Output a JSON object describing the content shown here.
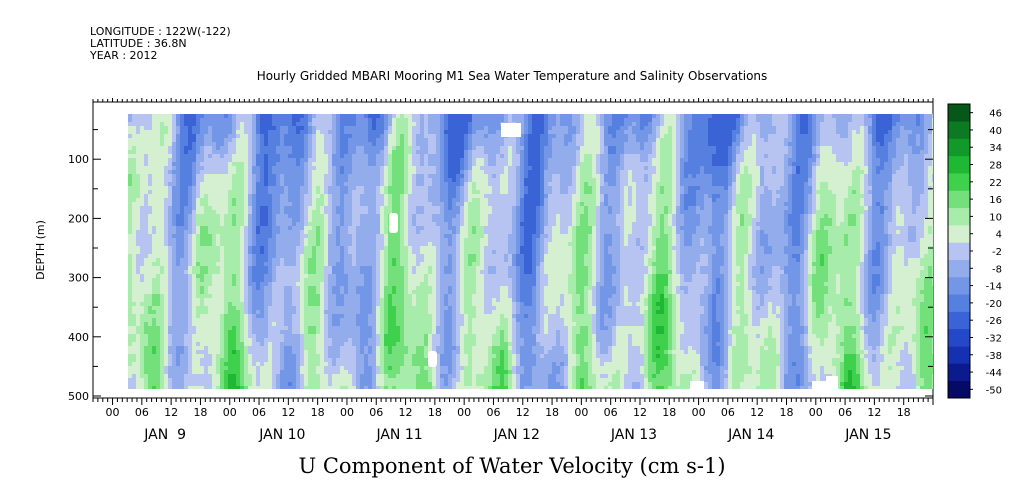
{
  "header": {
    "longitude": "LONGITUDE : 122W(-122)",
    "latitude": "LATITUDE : 36.8N",
    "year": "YEAR : 2012",
    "title": "Hourly Gridded MBARI Mooring M1 Sea Water Temperature and Salinity Observations"
  },
  "caption": "U Component of Water Velocity (cm s-1)",
  "chart_data": {
    "type": "heatmap",
    "title": "Hourly Gridded MBARI Mooring M1 Sea Water Temperature and Salinity Observations",
    "variable": "U Component of Water Velocity (cm s-1)",
    "xlabel": "",
    "ylabel": "DEPTH (m)",
    "x_range_hours": [
      "JAN 8 2012 20:00",
      "JAN 16 2012 00:00"
    ],
    "data_extent_hours": [
      "JAN 9 2012 06:00",
      "JAN 15 2012 23:00"
    ],
    "y_range": [
      500,
      0
    ],
    "y_data_extent": [
      490,
      15
    ],
    "y_ticks": [
      100,
      200,
      300,
      400,
      500
    ],
    "x_hour_ticks": [
      "00",
      "06",
      "12",
      "18",
      "00",
      "06",
      "12",
      "18",
      "00",
      "06",
      "12",
      "18",
      "00",
      "06",
      "12",
      "18",
      "00",
      "06",
      "12",
      "18",
      "00",
      "06",
      "12",
      "18",
      "00",
      "06",
      "12",
      "18"
    ],
    "x_day_labels": [
      "JAN  9",
      "JAN 10",
      "JAN 11",
      "JAN 12",
      "JAN 13",
      "JAN 14",
      "JAN 15"
    ],
    "colorbar": {
      "levels": [
        -50,
        -44,
        -38,
        -32,
        -26,
        -20,
        -14,
        -8,
        -2,
        4,
        10,
        16,
        22,
        28,
        34,
        40,
        46
      ],
      "labels": [
        "-50",
        "-44",
        "-38",
        "-32",
        "-26",
        "-20",
        "-14",
        "-8",
        "-2",
        "4",
        "10",
        "16",
        "22",
        "28",
        "34",
        "40",
        "46"
      ],
      "colors": [
        "#040a66",
        "#0b1a8c",
        "#1530b0",
        "#2448c8",
        "#3a64d6",
        "#5580e0",
        "#7396e6",
        "#93acec",
        "#b7c4f2",
        "#d4f0d0",
        "#a8ecac",
        "#74e07c",
        "#3fd04e",
        "#1eb834",
        "#119a2a",
        "#0b7a22",
        "#06581a"
      ]
    },
    "missing_regions": [
      "JAN 11 ~10:00 near 200-225 m",
      "JAN 11 ~19:00 near 430-445 m",
      "JAN 12 ~11:00 near 15-35 m",
      "JAN 13 ~20:00 near 480-490 m",
      "JAN 15 ~00:00 near 465-490 m"
    ]
  }
}
